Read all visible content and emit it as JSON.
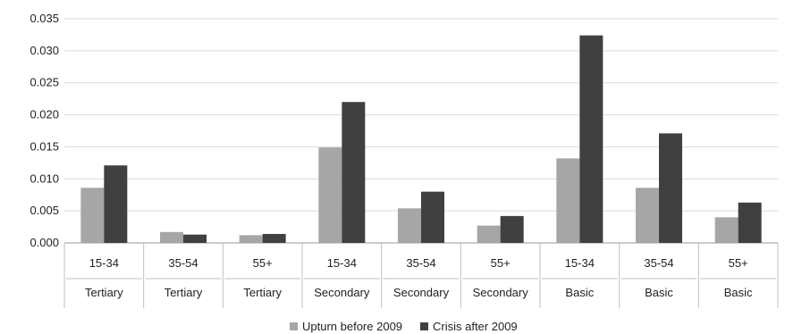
{
  "chart_data": {
    "type": "bar",
    "categories": [
      {
        "age": "15-34",
        "education": "Tertiary"
      },
      {
        "age": "35-54",
        "education": "Tertiary"
      },
      {
        "age": "55+",
        "education": "Tertiary"
      },
      {
        "age": "15-34",
        "education": "Secondary"
      },
      {
        "age": "35-54",
        "education": "Secondary"
      },
      {
        "age": "55+",
        "education": "Secondary"
      },
      {
        "age": "15-34",
        "education": "Basic"
      },
      {
        "age": "35-54",
        "education": "Basic"
      },
      {
        "age": "55+",
        "education": "Basic"
      }
    ],
    "series": [
      {
        "name": "Upturn before 2009",
        "color": "#a6a6a6",
        "values": [
          0.0086,
          0.0017,
          0.0012,
          0.0149,
          0.0054,
          0.0027,
          0.0132,
          0.0086,
          0.004
        ]
      },
      {
        "name": "Crisis after 2009",
        "color": "#404040",
        "values": [
          0.0121,
          0.0013,
          0.0014,
          0.022,
          0.008,
          0.0042,
          0.0324,
          0.0171,
          0.0063
        ]
      }
    ],
    "yticks": [
      "0.000",
      "0.005",
      "0.010",
      "0.015",
      "0.020",
      "0.025",
      "0.030",
      "0.035"
    ],
    "ylim": [
      0,
      0.035
    ],
    "grid": true,
    "legend_position": "bottom"
  }
}
